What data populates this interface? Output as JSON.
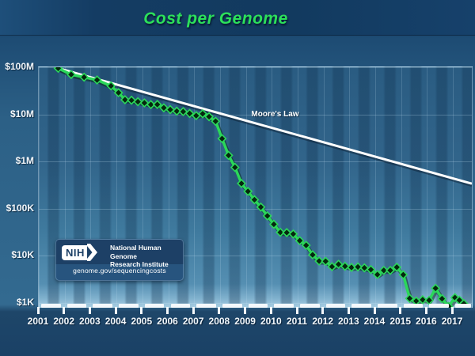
{
  "page": {
    "title": "Cost per Genome"
  },
  "annotations": {
    "moores_law": "Moore's Law"
  },
  "nih_badge": {
    "logo": "NIH",
    "org_line1": "National Human Genome",
    "org_line2": "Research Institute",
    "url": "genome.gov/sequencingcosts"
  },
  "colors": {
    "title_green": "#2ce05a",
    "series_green": "#2bd75a",
    "marker_fill": "#05270f",
    "moores_law_line": "#ffffff",
    "background_navy": "#123a5f",
    "plot_blue": "#31648a"
  },
  "chart_data": {
    "type": "line",
    "title": "Cost per Genome",
    "xlabel": "",
    "ylabel": "",
    "y_scale": "log10",
    "grid": true,
    "xlim": [
      2001,
      2017.73
    ],
    "ylim": [
      1000,
      100000000
    ],
    "x_tick_labels": [
      "2001",
      "2002",
      "2003",
      "2004",
      "2005",
      "2006",
      "2007",
      "2008",
      "2009",
      "2010",
      "2011",
      "2012",
      "2013",
      "2014",
      "2015",
      "2016",
      "2017"
    ],
    "y_ticks": [
      {
        "label": "$100M",
        "value": 100000000
      },
      {
        "label": "$10M",
        "value": 10000000
      },
      {
        "label": "$1M",
        "value": 1000000
      },
      {
        "label": "$100K",
        "value": 100000
      },
      {
        "label": "$10K",
        "value": 10000
      },
      {
        "label": "$1K",
        "value": 1000
      }
    ],
    "series": [
      {
        "name": "Cost per Genome",
        "marker": "diamond",
        "color": "#2bd75a",
        "points": [
          [
            2001.75,
            95263072
          ],
          [
            2002.25,
            70175437
          ],
          [
            2002.75,
            61448422
          ],
          [
            2003.25,
            53751684
          ],
          [
            2003.79,
            40157554
          ],
          [
            2004.08,
            28780376
          ],
          [
            2004.33,
            20442576
          ],
          [
            2004.58,
            19934346
          ],
          [
            2004.83,
            18519312
          ],
          [
            2005.08,
            17534970
          ],
          [
            2005.33,
            16159699
          ],
          [
            2005.58,
            16180224
          ],
          [
            2005.83,
            13801124
          ],
          [
            2006.08,
            12585659
          ],
          [
            2006.33,
            11732535
          ],
          [
            2006.58,
            11455315
          ],
          [
            2006.83,
            10474556
          ],
          [
            2007.08,
            9408739
          ],
          [
            2007.33,
            10314621
          ],
          [
            2007.58,
            8927342
          ],
          [
            2007.83,
            7147571
          ],
          [
            2008.08,
            3063820
          ],
          [
            2008.33,
            1352982
          ],
          [
            2008.58,
            752080
          ],
          [
            2008.83,
            342502
          ],
          [
            2009.08,
            232735
          ],
          [
            2009.33,
            154714
          ],
          [
            2009.58,
            108065
          ],
          [
            2009.83,
            70333
          ],
          [
            2010.08,
            46774
          ],
          [
            2010.33,
            31512
          ],
          [
            2010.58,
            31125
          ],
          [
            2010.83,
            29092
          ],
          [
            2011.08,
            20963
          ],
          [
            2011.33,
            16712
          ],
          [
            2011.58,
            10497
          ],
          [
            2011.83,
            7743
          ],
          [
            2012.08,
            7666
          ],
          [
            2012.33,
            5901
          ],
          [
            2012.58,
            6618
          ],
          [
            2012.83,
            6000
          ],
          [
            2013.08,
            5671
          ],
          [
            2013.33,
            5826
          ],
          [
            2013.58,
            5550
          ],
          [
            2013.83,
            5096
          ],
          [
            2014.08,
            4008
          ],
          [
            2014.33,
            4920
          ],
          [
            2014.58,
            4905
          ],
          [
            2014.83,
            5731
          ],
          [
            2015.08,
            3970
          ],
          [
            2015.33,
            1250
          ],
          [
            2015.58,
            1100
          ],
          [
            2015.83,
            1170
          ],
          [
            2016.08,
            1140
          ],
          [
            2016.33,
            2050
          ],
          [
            2016.58,
            1230
          ],
          [
            2016.83,
            850
          ],
          [
            2017.08,
            1300
          ],
          [
            2017.25,
            1150
          ],
          [
            2017.42,
            970
          ]
        ]
      },
      {
        "name": "Moore's Law",
        "marker": "none",
        "color": "#ffffff",
        "points": [
          [
            2001.75,
            95263072
          ],
          [
            2017.73,
            340000
          ]
        ]
      }
    ],
    "legend": "none"
  }
}
